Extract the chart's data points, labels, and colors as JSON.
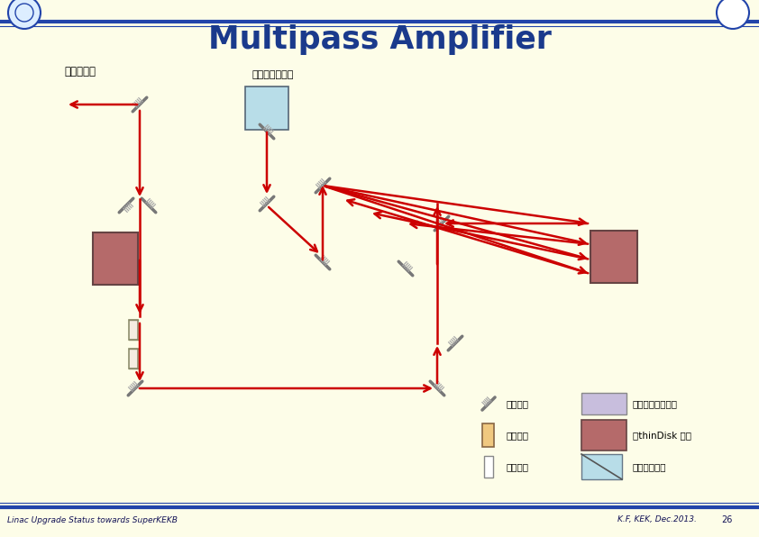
{
  "title": "Multipass Amplifier",
  "title_color": "#1a3a8c",
  "bg_color": "#fdfde8",
  "border_color": "#2244aa",
  "footer_text_left": "Linac Upgrade Status towards SuperKEKB",
  "footer_text_right": "K.F, KEK, Dec.2013.",
  "footer_page": "26",
  "arrow_color": "#cc0000",
  "arrow_lw": 1.8,
  "label_wavelen": "波長変換へ",
  "label_regen": "再生増幅器より",
  "legend_mirror": "：ミラー",
  "legend_waveplate": "：波長監",
  "legend_lens": "：レンズ",
  "legend_pockels": "：ポッケルスセル",
  "legend_thindisk": "：thinDisk 結品",
  "legend_polarizer": "：ボラライザ",
  "pockels_color": "#c8bedd",
  "thindisk_color": "#b56a6a",
  "lens_color": "#e8c8a0",
  "polarizer_color": "#b8dde8",
  "mirror_color": "#777777"
}
